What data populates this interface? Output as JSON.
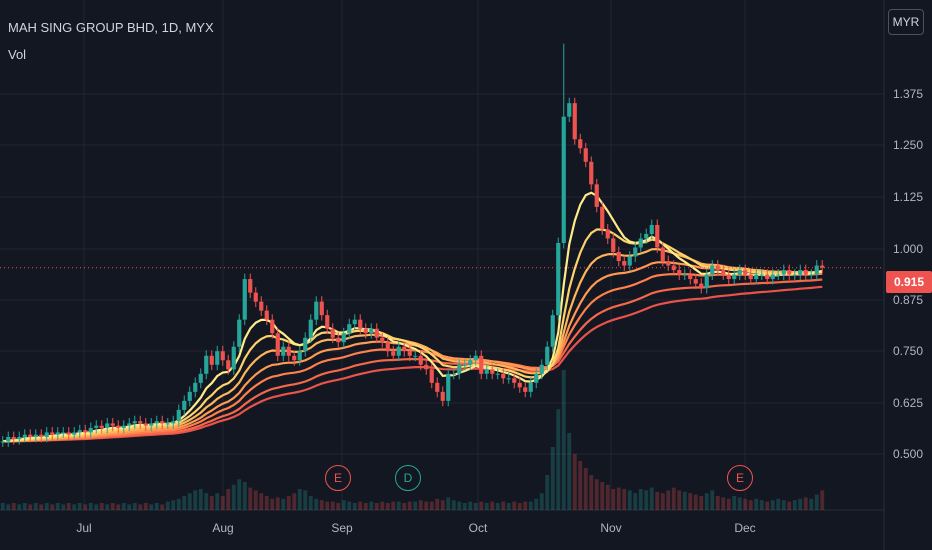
{
  "header": {
    "title": "MAH SING GROUP BHD, 1D, MYX",
    "volume_label": "Vol",
    "currency": "MYR"
  },
  "colors": {
    "up": "#26a69a",
    "down": "#ef5350",
    "background": "#131722",
    "grid": "#232632",
    "price_badge": "#ef5350"
  },
  "chart_data": {
    "type": "candlestick",
    "title": "MAH SING GROUP BHD, 1D, MYX",
    "last_price": "0.915",
    "y_ticks": [
      "1.375",
      "1.250",
      "1.125",
      "1.000",
      "0.875",
      "0.750",
      "0.625",
      "0.500"
    ],
    "ylim": [
      0.415,
      1.42
    ],
    "x_ticks": [
      "Jul",
      "Aug",
      "Sep",
      "Oct",
      "Nov",
      "Dec"
    ],
    "events": [
      {
        "label": "E",
        "kind": "earnings",
        "after_date": "Sep"
      },
      {
        "label": "D",
        "kind": "dividend",
        "after_date": "Sep"
      },
      {
        "label": "E",
        "kind": "earnings",
        "after_date": "Dec"
      }
    ],
    "close": [
      0.53,
      0.54,
      0.535,
      0.54,
      0.545,
      0.54,
      0.545,
      0.54,
      0.55,
      0.545,
      0.55,
      0.55,
      0.545,
      0.55,
      0.555,
      0.55,
      0.56,
      0.565,
      0.56,
      0.57,
      0.565,
      0.56,
      0.565,
      0.57,
      0.575,
      0.57,
      0.565,
      0.57,
      0.575,
      0.57,
      0.57,
      0.575,
      0.6,
      0.62,
      0.64,
      0.66,
      0.68,
      0.72,
      0.7,
      0.73,
      0.71,
      0.69,
      0.74,
      0.8,
      0.89,
      0.86,
      0.84,
      0.82,
      0.8,
      0.77,
      0.72,
      0.74,
      0.72,
      0.71,
      0.73,
      0.76,
      0.8,
      0.84,
      0.81,
      0.78,
      0.76,
      0.75,
      0.77,
      0.79,
      0.8,
      0.78,
      0.77,
      0.78,
      0.76,
      0.75,
      0.73,
      0.72,
      0.74,
      0.73,
      0.72,
      0.72,
      0.7,
      0.69,
      0.66,
      0.64,
      0.62,
      0.68,
      0.68,
      0.7,
      0.7,
      0.71,
      0.72,
      0.68,
      0.69,
      0.68,
      0.68,
      0.67,
      0.67,
      0.66,
      0.65,
      0.64,
      0.66,
      0.68,
      0.7,
      0.74,
      0.81,
      0.97,
      1.25,
      1.28,
      1.2,
      1.18,
      1.15,
      1.1,
      1.05,
      1.0,
      0.98,
      0.95,
      0.93,
      0.92,
      0.94,
      0.96,
      0.98,
      0.99,
      1.01,
      0.96,
      0.93,
      0.92,
      0.91,
      0.9,
      0.9,
      0.89,
      0.88,
      0.87,
      0.9,
      0.92,
      0.91,
      0.9,
      0.89,
      0.9,
      0.91,
      0.9,
      0.89,
      0.9,
      0.9,
      0.89,
      0.9,
      0.9,
      0.91,
      0.9,
      0.9,
      0.91,
      0.9,
      0.9,
      0.92,
      0.915
    ],
    "volume": [
      0.05,
      0.04,
      0.05,
      0.04,
      0.05,
      0.04,
      0.05,
      0.04,
      0.05,
      0.04,
      0.05,
      0.04,
      0.05,
      0.04,
      0.05,
      0.04,
      0.05,
      0.04,
      0.05,
      0.04,
      0.05,
      0.04,
      0.05,
      0.04,
      0.05,
      0.04,
      0.05,
      0.04,
      0.05,
      0.04,
      0.06,
      0.07,
      0.08,
      0.1,
      0.12,
      0.14,
      0.15,
      0.12,
      0.1,
      0.12,
      0.1,
      0.15,
      0.18,
      0.22,
      0.2,
      0.16,
      0.14,
      0.12,
      0.1,
      0.08,
      0.09,
      0.08,
      0.1,
      0.12,
      0.15,
      0.14,
      0.1,
      0.08,
      0.07,
      0.06,
      0.06,
      0.05,
      0.07,
      0.06,
      0.05,
      0.06,
      0.05,
      0.06,
      0.05,
      0.06,
      0.05,
      0.06,
      0.06,
      0.05,
      0.06,
      0.06,
      0.07,
      0.06,
      0.06,
      0.08,
      0.07,
      0.09,
      0.07,
      0.06,
      0.05,
      0.06,
      0.05,
      0.06,
      0.05,
      0.06,
      0.05,
      0.06,
      0.05,
      0.06,
      0.05,
      0.06,
      0.06,
      0.08,
      0.12,
      0.25,
      0.45,
      0.72,
      1.0,
      0.55,
      0.4,
      0.35,
      0.3,
      0.25,
      0.22,
      0.2,
      0.18,
      0.15,
      0.16,
      0.15,
      0.14,
      0.12,
      0.15,
      0.14,
      0.16,
      0.13,
      0.12,
      0.14,
      0.16,
      0.14,
      0.13,
      0.12,
      0.11,
      0.1,
      0.12,
      0.14,
      0.1,
      0.09,
      0.08,
      0.1,
      0.09,
      0.08,
      0.07,
      0.08,
      0.07,
      0.06,
      0.07,
      0.08,
      0.07,
      0.06,
      0.07,
      0.08,
      0.09,
      0.08,
      0.11,
      0.14
    ]
  }
}
